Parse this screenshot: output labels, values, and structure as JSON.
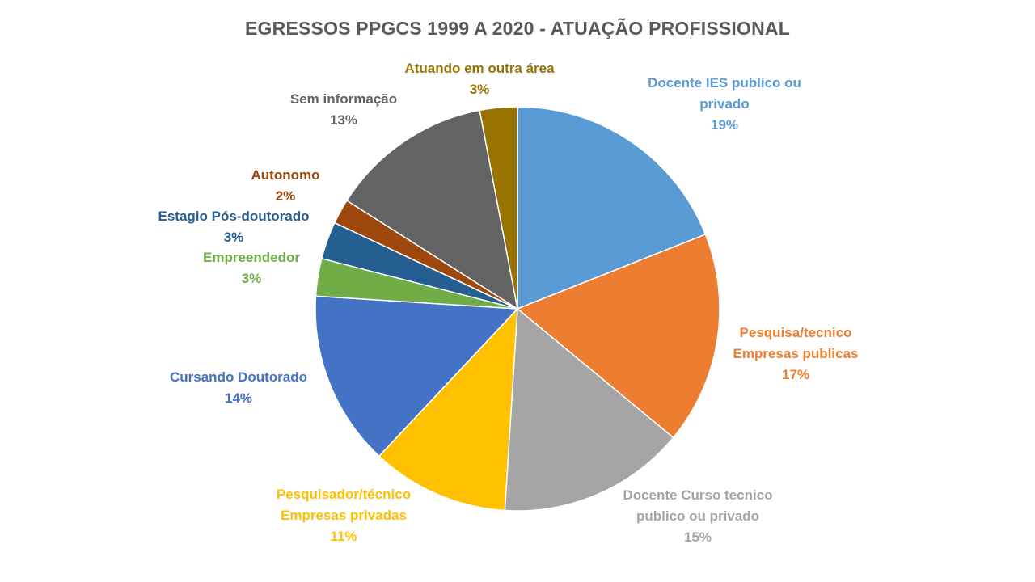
{
  "chart_data": {
    "type": "pie",
    "title": "EGRESSOS PPGCS 1999 A 2020 - ATUAÇÃO PROFISSIONAL",
    "slices": [
      {
        "name": "Docente IES publico ou privado",
        "label_lines": [
          "Docente  IES publico  ou",
          "privado"
        ],
        "percent_label": "19%",
        "value": 19,
        "color": "#5B9BD5"
      },
      {
        "name": "Pesquisa/tecnico Empresas publicas",
        "label_lines": [
          "Pesquisa/tecnico",
          "Empresas  publicas"
        ],
        "percent_label": "17%",
        "value": 17,
        "color": "#ED7D31"
      },
      {
        "name": "Docente Curso tecnico publico ou privado",
        "label_lines": [
          "Docente  Curso  tecnico",
          "publico  ou  privado"
        ],
        "percent_label": "15%",
        "value": 15,
        "color": "#A5A5A5"
      },
      {
        "name": "Pesquisador/técnico Empresas privadas",
        "label_lines": [
          "Pesquisador/técnico",
          "Empresas  privadas"
        ],
        "percent_label": "11%",
        "value": 11,
        "color": "#FFC000"
      },
      {
        "name": "Cursando Doutorado",
        "label_lines": [
          "Cursando  Doutorado"
        ],
        "percent_label": "14%",
        "value": 14,
        "color": "#4472C4"
      },
      {
        "name": "Empreendedor",
        "label_lines": [
          "Empreendedor"
        ],
        "percent_label": "3%",
        "value": 3,
        "color": "#70AD47"
      },
      {
        "name": "Estagio Pós-doutorado",
        "label_lines": [
          "Estagio  Pós-doutorado"
        ],
        "percent_label": "3%",
        "value": 3,
        "color": "#255E91"
      },
      {
        "name": "Autonomo",
        "label_lines": [
          "Autonomo"
        ],
        "percent_label": "2%",
        "value": 2,
        "color": "#9E480E"
      },
      {
        "name": "Sem informação",
        "label_lines": [
          "Sem  informação"
        ],
        "percent_label": "13%",
        "value": 13,
        "color": "#636363"
      },
      {
        "name": "Atuando em outra área",
        "label_lines": [
          "Atuando  em  outra  área"
        ],
        "percent_label": "3%",
        "value": 3,
        "color": "#997300"
      }
    ],
    "legend": "none",
    "data_labels": "outside"
  }
}
